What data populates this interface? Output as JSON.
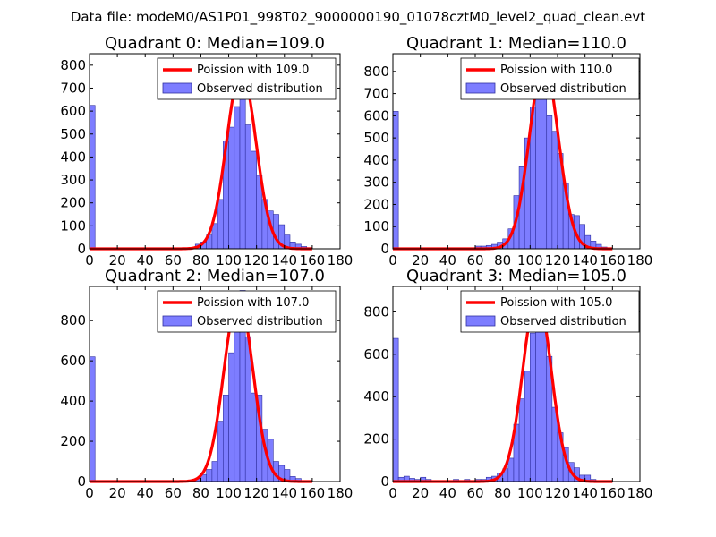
{
  "figure": {
    "suptitle": "Data file: modeM0/AS1P01_998T02_9000000190_01078cztM0_level2_quad_clean.evt",
    "colors": {
      "bar_fill": "#7d7dff",
      "bar_edge": "#3030a0",
      "poisson_line": "#ff0000"
    }
  },
  "chart_data": [
    {
      "type": "bar",
      "title": "Quadrant 0: Median=109.0",
      "median": 109.0,
      "legend": [
        "Poission with 109.0",
        "Observed distribution"
      ],
      "bin_width": 4,
      "xlim": [
        0,
        180
      ],
      "ylim": [
        0,
        850
      ],
      "xticks": [
        0,
        20,
        40,
        60,
        80,
        100,
        120,
        140,
        160,
        180
      ],
      "yticks": [
        0,
        100,
        200,
        300,
        400,
        500,
        600,
        700,
        800
      ],
      "bins": [
        {
          "x": 0,
          "y": 625
        },
        {
          "x": 4,
          "y": 3
        },
        {
          "x": 8,
          "y": 2
        },
        {
          "x": 12,
          "y": 3
        },
        {
          "x": 16,
          "y": 2
        },
        {
          "x": 20,
          "y": 2
        },
        {
          "x": 24,
          "y": 2
        },
        {
          "x": 28,
          "y": 2
        },
        {
          "x": 32,
          "y": 2
        },
        {
          "x": 36,
          "y": 2
        },
        {
          "x": 40,
          "y": 2
        },
        {
          "x": 44,
          "y": 2
        },
        {
          "x": 48,
          "y": 2
        },
        {
          "x": 52,
          "y": 2
        },
        {
          "x": 56,
          "y": 2
        },
        {
          "x": 60,
          "y": 2
        },
        {
          "x": 64,
          "y": 2
        },
        {
          "x": 68,
          "y": 3
        },
        {
          "x": 72,
          "y": 5
        },
        {
          "x": 76,
          "y": 20
        },
        {
          "x": 80,
          "y": 30
        },
        {
          "x": 84,
          "y": 60
        },
        {
          "x": 88,
          "y": 110
        },
        {
          "x": 92,
          "y": 215
        },
        {
          "x": 96,
          "y": 470
        },
        {
          "x": 100,
          "y": 530
        },
        {
          "x": 104,
          "y": 620
        },
        {
          "x": 108,
          "y": 780
        },
        {
          "x": 112,
          "y": 540
        },
        {
          "x": 116,
          "y": 425
        },
        {
          "x": 120,
          "y": 320
        },
        {
          "x": 124,
          "y": 215
        },
        {
          "x": 128,
          "y": 165
        },
        {
          "x": 132,
          "y": 150
        },
        {
          "x": 136,
          "y": 105
        },
        {
          "x": 140,
          "y": 60
        },
        {
          "x": 144,
          "y": 30
        },
        {
          "x": 148,
          "y": 20
        },
        {
          "x": 152,
          "y": 10
        },
        {
          "x": 156,
          "y": 5
        }
      ],
      "poisson_peak": 780
    },
    {
      "type": "bar",
      "title": "Quadrant 1: Median=110.0",
      "median": 110.0,
      "legend": [
        "Poission with 110.0",
        "Observed distribution"
      ],
      "bin_width": 4,
      "xlim": [
        0,
        180
      ],
      "ylim": [
        0,
        880
      ],
      "xticks": [
        0,
        20,
        40,
        60,
        80,
        100,
        120,
        140,
        160,
        180
      ],
      "yticks": [
        0,
        100,
        200,
        300,
        400,
        500,
        600,
        700,
        800
      ],
      "bins": [
        {
          "x": 0,
          "y": 620
        },
        {
          "x": 4,
          "y": 3
        },
        {
          "x": 8,
          "y": 2
        },
        {
          "x": 12,
          "y": 2
        },
        {
          "x": 16,
          "y": 2
        },
        {
          "x": 20,
          "y": 2
        },
        {
          "x": 24,
          "y": 2
        },
        {
          "x": 28,
          "y": 2
        },
        {
          "x": 32,
          "y": 2
        },
        {
          "x": 36,
          "y": 2
        },
        {
          "x": 40,
          "y": 2
        },
        {
          "x": 44,
          "y": 2
        },
        {
          "x": 48,
          "y": 2
        },
        {
          "x": 52,
          "y": 2
        },
        {
          "x": 56,
          "y": 2
        },
        {
          "x": 60,
          "y": 12
        },
        {
          "x": 64,
          "y": 12
        },
        {
          "x": 68,
          "y": 15
        },
        {
          "x": 72,
          "y": 20
        },
        {
          "x": 76,
          "y": 30
        },
        {
          "x": 80,
          "y": 45
        },
        {
          "x": 84,
          "y": 90
        },
        {
          "x": 88,
          "y": 240
        },
        {
          "x": 92,
          "y": 370
        },
        {
          "x": 96,
          "y": 500
        },
        {
          "x": 100,
          "y": 640
        },
        {
          "x": 104,
          "y": 720
        },
        {
          "x": 108,
          "y": 850
        },
        {
          "x": 112,
          "y": 600
        },
        {
          "x": 116,
          "y": 530
        },
        {
          "x": 120,
          "y": 430
        },
        {
          "x": 124,
          "y": 295
        },
        {
          "x": 128,
          "y": 155
        },
        {
          "x": 132,
          "y": 150
        },
        {
          "x": 136,
          "y": 110
        },
        {
          "x": 140,
          "y": 60
        },
        {
          "x": 144,
          "y": 35
        },
        {
          "x": 148,
          "y": 20
        },
        {
          "x": 152,
          "y": 8
        },
        {
          "x": 156,
          "y": 3
        }
      ],
      "poisson_peak": 840
    },
    {
      "type": "bar",
      "title": "Quadrant 2: Median=107.0",
      "median": 107.0,
      "legend": [
        "Poission with 107.0",
        "Observed distribution"
      ],
      "bin_width": 4,
      "xlim": [
        0,
        180
      ],
      "ylim": [
        0,
        970
      ],
      "xticks": [
        0,
        20,
        40,
        60,
        80,
        100,
        120,
        140,
        160,
        180
      ],
      "yticks": [
        0,
        200,
        400,
        600,
        800
      ],
      "bins": [
        {
          "x": 0,
          "y": 620
        },
        {
          "x": 4,
          "y": 3
        },
        {
          "x": 8,
          "y": 2
        },
        {
          "x": 12,
          "y": 2
        },
        {
          "x": 16,
          "y": 2
        },
        {
          "x": 20,
          "y": 2
        },
        {
          "x": 24,
          "y": 2
        },
        {
          "x": 28,
          "y": 2
        },
        {
          "x": 32,
          "y": 2
        },
        {
          "x": 36,
          "y": 2
        },
        {
          "x": 40,
          "y": 2
        },
        {
          "x": 44,
          "y": 2
        },
        {
          "x": 48,
          "y": 2
        },
        {
          "x": 52,
          "y": 2
        },
        {
          "x": 56,
          "y": 2
        },
        {
          "x": 60,
          "y": 2
        },
        {
          "x": 64,
          "y": 5
        },
        {
          "x": 68,
          "y": 5
        },
        {
          "x": 72,
          "y": 5
        },
        {
          "x": 76,
          "y": 15
        },
        {
          "x": 80,
          "y": 35
        },
        {
          "x": 84,
          "y": 60
        },
        {
          "x": 88,
          "y": 100
        },
        {
          "x": 92,
          "y": 300
        },
        {
          "x": 96,
          "y": 430
        },
        {
          "x": 100,
          "y": 640
        },
        {
          "x": 104,
          "y": 760
        },
        {
          "x": 108,
          "y": 950
        },
        {
          "x": 112,
          "y": 720
        },
        {
          "x": 116,
          "y": 440
        },
        {
          "x": 120,
          "y": 430
        },
        {
          "x": 124,
          "y": 260
        },
        {
          "x": 128,
          "y": 210
        },
        {
          "x": 132,
          "y": 100
        },
        {
          "x": 136,
          "y": 80
        },
        {
          "x": 140,
          "y": 60
        },
        {
          "x": 144,
          "y": 25
        },
        {
          "x": 148,
          "y": 15
        },
        {
          "x": 152,
          "y": 5
        },
        {
          "x": 156,
          "y": 5
        }
      ],
      "poisson_peak": 920
    },
    {
      "type": "bar",
      "title": "Quadrant 3: Median=105.0",
      "median": 105.0,
      "legend": [
        "Poission with 105.0",
        "Observed distribution"
      ],
      "bin_width": 4,
      "xlim": [
        0,
        180
      ],
      "ylim": [
        0,
        920
      ],
      "xticks": [
        0,
        20,
        40,
        60,
        80,
        100,
        120,
        140,
        160,
        180
      ],
      "yticks": [
        0,
        200,
        400,
        600,
        800
      ],
      "bins": [
        {
          "x": 0,
          "y": 675
        },
        {
          "x": 4,
          "y": 20
        },
        {
          "x": 8,
          "y": 25
        },
        {
          "x": 12,
          "y": 15
        },
        {
          "x": 16,
          "y": 10
        },
        {
          "x": 20,
          "y": 20
        },
        {
          "x": 24,
          "y": 10
        },
        {
          "x": 28,
          "y": 5
        },
        {
          "x": 32,
          "y": 5
        },
        {
          "x": 36,
          "y": 5
        },
        {
          "x": 40,
          "y": 5
        },
        {
          "x": 44,
          "y": 10
        },
        {
          "x": 48,
          "y": 5
        },
        {
          "x": 52,
          "y": 10
        },
        {
          "x": 56,
          "y": 5
        },
        {
          "x": 60,
          "y": 10
        },
        {
          "x": 64,
          "y": 10
        },
        {
          "x": 68,
          "y": 20
        },
        {
          "x": 72,
          "y": 25
        },
        {
          "x": 76,
          "y": 40
        },
        {
          "x": 80,
          "y": 60
        },
        {
          "x": 84,
          "y": 110
        },
        {
          "x": 88,
          "y": 270
        },
        {
          "x": 92,
          "y": 390
        },
        {
          "x": 96,
          "y": 520
        },
        {
          "x": 100,
          "y": 700
        },
        {
          "x": 104,
          "y": 875
        },
        {
          "x": 108,
          "y": 800
        },
        {
          "x": 112,
          "y": 590
        },
        {
          "x": 116,
          "y": 350
        },
        {
          "x": 120,
          "y": 230
        },
        {
          "x": 124,
          "y": 160
        },
        {
          "x": 128,
          "y": 90
        },
        {
          "x": 132,
          "y": 65
        },
        {
          "x": 136,
          "y": 30
        },
        {
          "x": 140,
          "y": 30
        },
        {
          "x": 144,
          "y": 10
        },
        {
          "x": 148,
          "y": 5
        },
        {
          "x": 152,
          "y": 3
        },
        {
          "x": 156,
          "y": 2
        }
      ],
      "poisson_peak": 880
    }
  ]
}
